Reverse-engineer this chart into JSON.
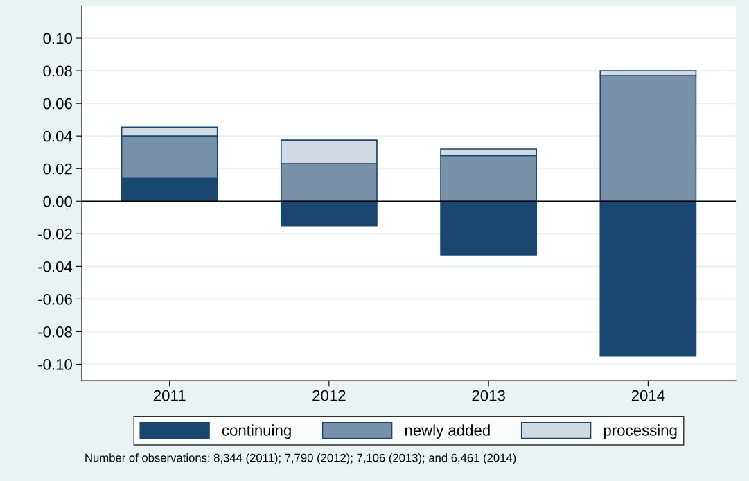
{
  "chart_data": {
    "type": "bar",
    "stacked": true,
    "categories": [
      "2011",
      "2012",
      "2013",
      "2014"
    ],
    "series": [
      {
        "name": "continuing",
        "color": "#1a476f",
        "values": [
          0.014,
          -0.015,
          -0.033,
          -0.095
        ]
      },
      {
        "name": "newly added",
        "color": "#7891aa",
        "values": [
          0.026,
          0.023,
          0.028,
          0.077
        ]
      },
      {
        "name": "processing",
        "color": "#d1d9e2",
        "values": [
          0.0055,
          0.0145,
          0.004,
          0.003
        ]
      }
    ],
    "ylim": [
      -0.11,
      0.12
    ],
    "yticks": [
      {
        "value": -0.1,
        "label": "-0.10"
      },
      {
        "value": -0.08,
        "label": "-0.08"
      },
      {
        "value": -0.06,
        "label": "-0.06"
      },
      {
        "value": -0.04,
        "label": "-0.04"
      },
      {
        "value": -0.02,
        "label": "-0.02"
      },
      {
        "value": 0,
        "label": "0.00"
      },
      {
        "value": 0.02,
        "label": "0.02"
      },
      {
        "value": 0.04,
        "label": "0.04"
      },
      {
        "value": 0.06,
        "label": "0.06"
      },
      {
        "value": 0.08,
        "label": "0.08"
      },
      {
        "value": 0.1,
        "label": "0.10"
      }
    ],
    "ref_lines": [
      {
        "axis": "y",
        "value": 0,
        "color": "#000000"
      }
    ],
    "grid": "y",
    "legend": "bottom",
    "annotations": [
      "Number of observations: 8,344 (2011); 7,790 (2012); 7,106 (2013); and 6,461 (2014)"
    ]
  }
}
